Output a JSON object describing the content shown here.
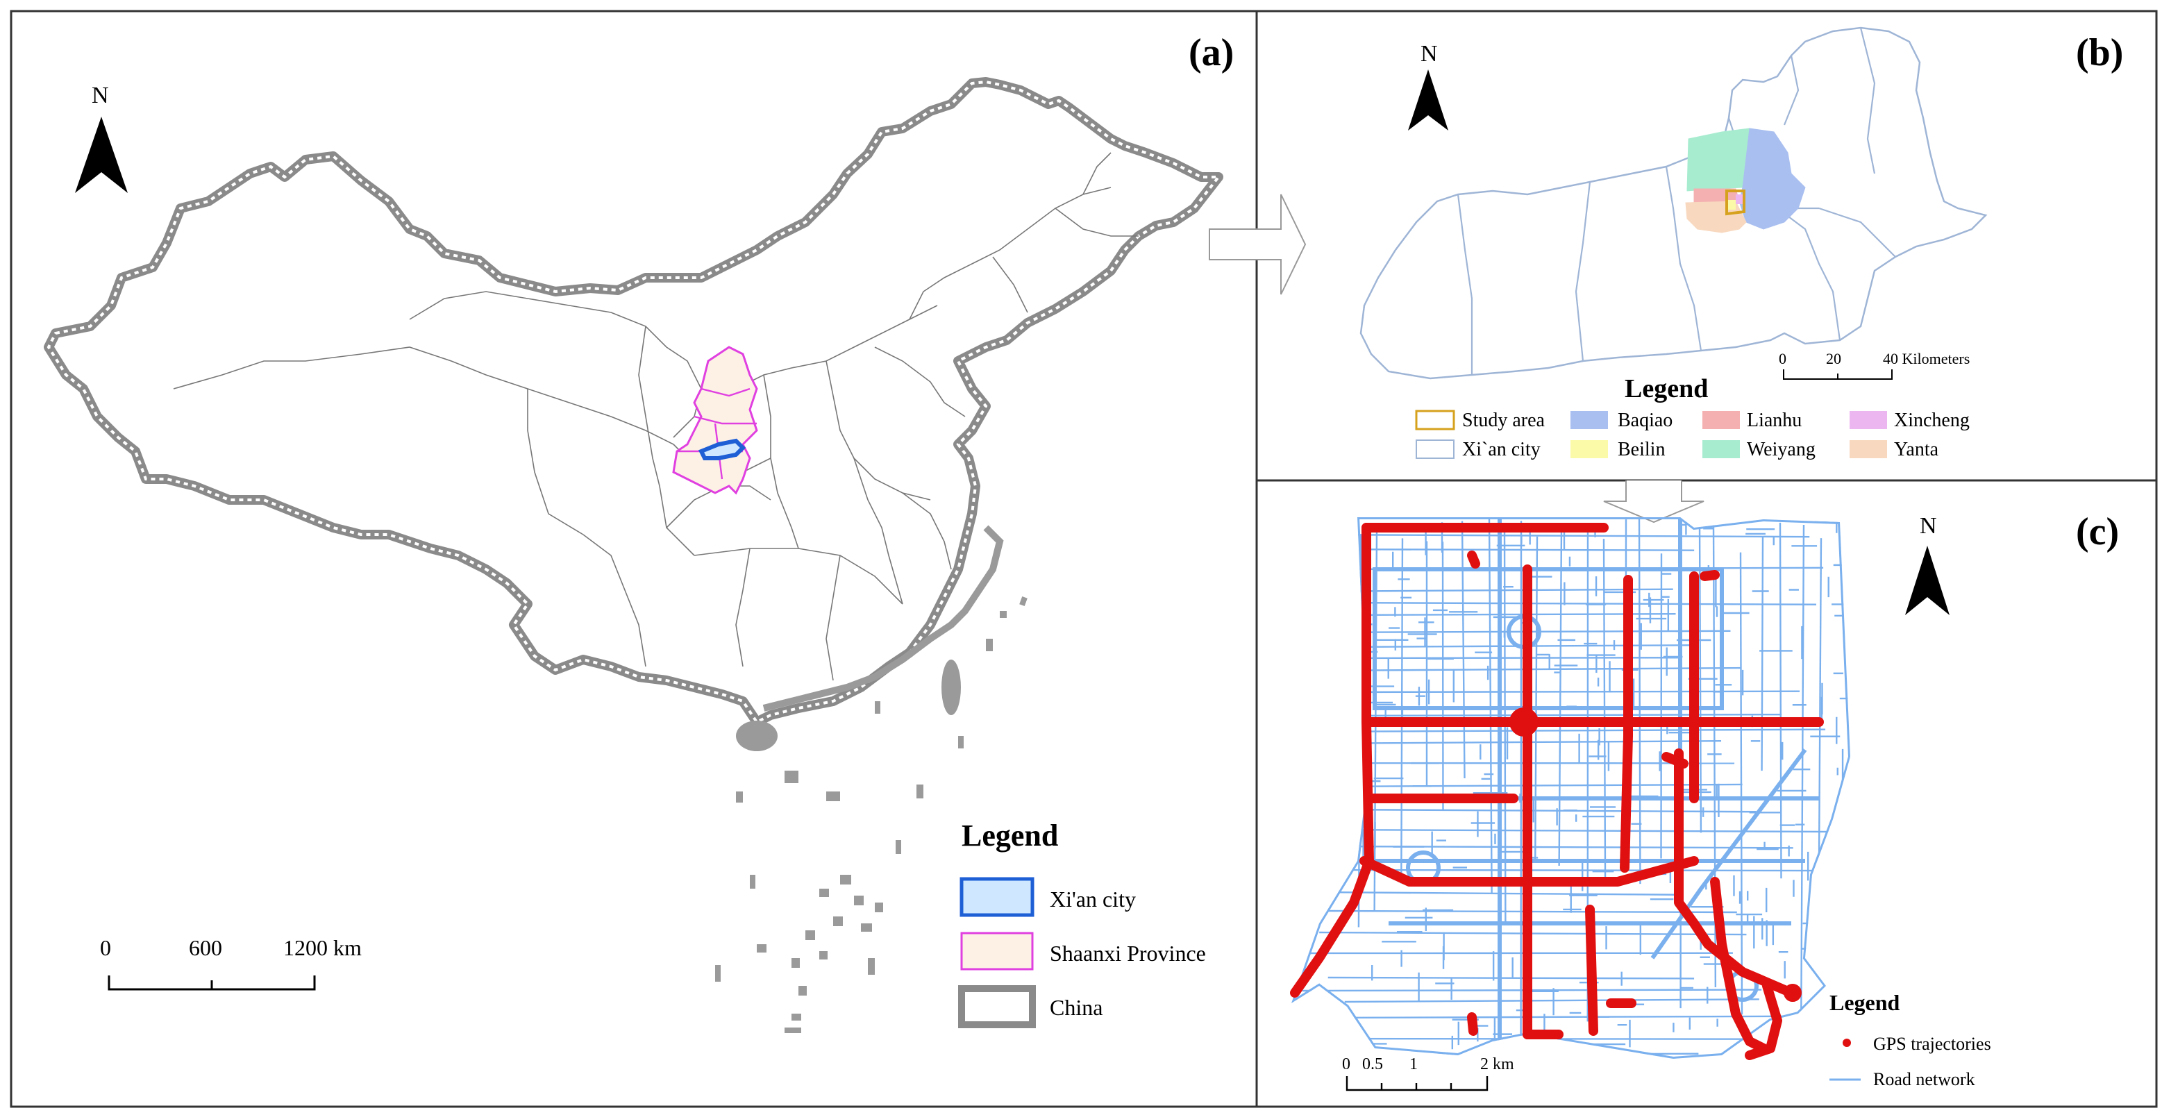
{
  "panels": {
    "a": {
      "label": "(a)",
      "north": "N",
      "legend": {
        "title": "Legend",
        "items": [
          {
            "label": "Xi'an city",
            "fill": "#cfe8ff",
            "stroke": "#1f5fd6"
          },
          {
            "label": "Shaanxi Province",
            "fill": "#fdf1e6",
            "stroke": "#e040e0"
          },
          {
            "label": "China",
            "fill": "#ffffff",
            "stroke": "#8a8a8a"
          }
        ]
      },
      "scale": {
        "ticks": [
          "0",
          "600",
          "1200 km"
        ]
      }
    },
    "b": {
      "label": "(b)",
      "north": "N",
      "scale": {
        "ticks": [
          "0",
          "20",
          "40 Kilometers"
        ]
      },
      "legend": {
        "title": "Legend",
        "items": [
          {
            "label": "Study area",
            "fill": "#ffffff",
            "stroke": "#d6a21e"
          },
          {
            "label": "Baqiao",
            "fill": "#a9bff0",
            "stroke": "#a9bff0"
          },
          {
            "label": "Lianhu",
            "fill": "#f4b0b0",
            "stroke": "#f4b0b0"
          },
          {
            "label": "Xincheng",
            "fill": "#ecb6f0",
            "stroke": "#ecb6f0"
          },
          {
            "label": "Xi`an city",
            "fill": "#ffffff",
            "stroke": "#9fb5d6"
          },
          {
            "label": "Beilin",
            "fill": "#fafaa8",
            "stroke": "#fafaa8"
          },
          {
            "label": "Weiyang",
            "fill": "#a8ecd0",
            "stroke": "#a8ecd0"
          },
          {
            "label": "Yanta",
            "fill": "#f8d9c0",
            "stroke": "#f8d9c0"
          }
        ]
      }
    },
    "c": {
      "label": "(c)",
      "north": "N",
      "scale": {
        "ticks": [
          "0",
          "0.5",
          "1",
          "2 km"
        ]
      },
      "legend": {
        "title": "Legend",
        "items": [
          {
            "label": "GPS trajectories",
            "color": "#e01010"
          },
          {
            "label": "Road network",
            "color": "#7ab0ee"
          }
        ]
      }
    }
  },
  "colors": {
    "road": "#7ab0ee",
    "gps": "#e01010",
    "border_gray": "#8a8a8a"
  }
}
